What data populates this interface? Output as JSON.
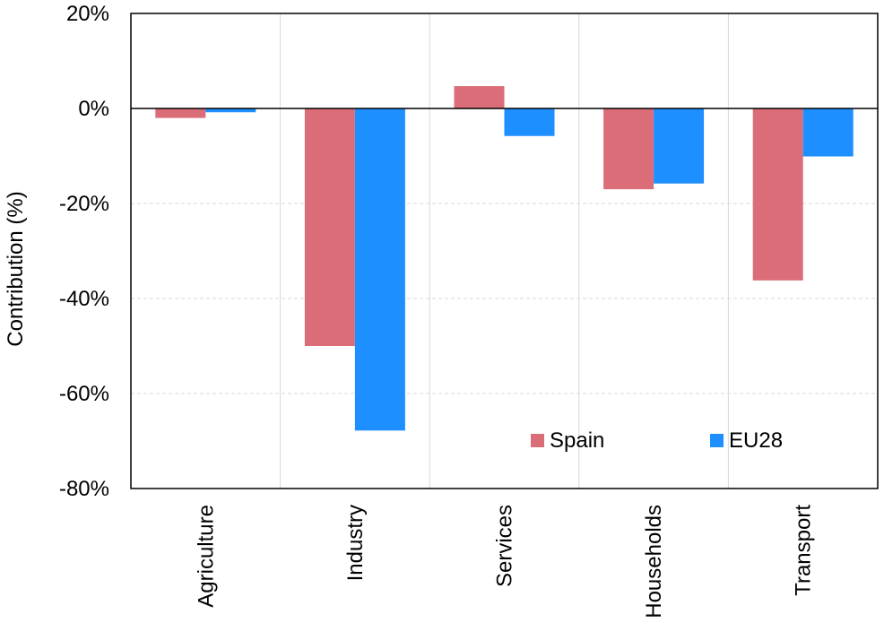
{
  "chart_data": {
    "type": "bar",
    "title": "",
    "xlabel": "",
    "ylabel": "Contribution (%)",
    "categories": [
      "Agriculture",
      "Industry",
      "Services",
      "Households",
      "Transport"
    ],
    "series": [
      {
        "name": "Spain",
        "color": "#db6d78",
        "values": [
          -2,
          -50,
          4.7,
          -17,
          -36.2
        ]
      },
      {
        "name": "EU28",
        "color": "#1e8fff",
        "values": [
          -0.8,
          -67.8,
          -5.8,
          -15.8,
          -10.1
        ]
      }
    ],
    "ylim": [
      -80,
      20
    ],
    "yticks": [
      20,
      0,
      -20,
      -40,
      -60,
      -80
    ],
    "ytick_labels": [
      "20%",
      "0%",
      "-20%",
      "-40%",
      "-60%",
      "-80%"
    ],
    "grid": {
      "horizontal": "dashed",
      "vertical": "solid"
    },
    "legend_position": "bottom-right"
  }
}
